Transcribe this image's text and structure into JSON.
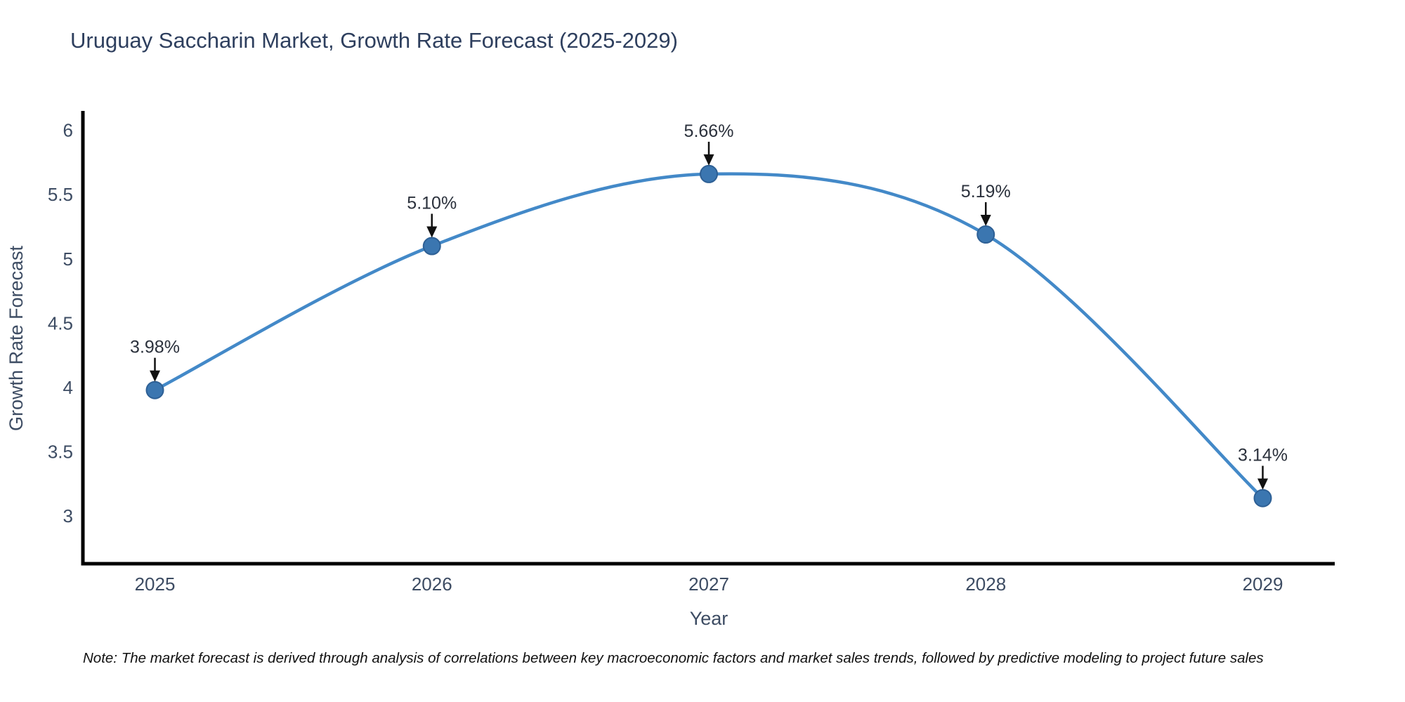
{
  "note": "Note: The market forecast is derived through analysis of correlations between key macroeconomic factors and market sales trends, followed by predictive modeling to project future sales",
  "chart_data": {
    "type": "line",
    "title": "Uruguay Saccharin Market, Growth Rate Forecast (2025-2029)",
    "xlabel": "Year",
    "ylabel": "Growth Rate Forecast",
    "x": [
      2025,
      2026,
      2027,
      2028,
      2029
    ],
    "values": [
      3.98,
      5.1,
      5.66,
      5.19,
      3.14
    ],
    "point_labels": [
      "3.98%",
      "5.10%",
      "5.66%",
      "5.19%",
      "3.14%"
    ],
    "y_ticks": [
      6,
      5.5,
      5,
      4.5,
      4,
      3.5,
      3
    ],
    "xlim": [
      2024.74,
      2029.26
    ],
    "ylim": [
      2.63,
      6.14
    ],
    "grid": false,
    "legend": "none",
    "line_shape": "spline",
    "colors": {
      "line": "#4389c8",
      "marker": "#3b76b0",
      "marker_edge": "#2e6095",
      "arrow": "#111111",
      "axis_line": "#000000",
      "title_text": "#2e3f5e",
      "tick_text": "#3d4c63",
      "annotation_text": "#2b313c",
      "note_text": "#111111"
    }
  }
}
